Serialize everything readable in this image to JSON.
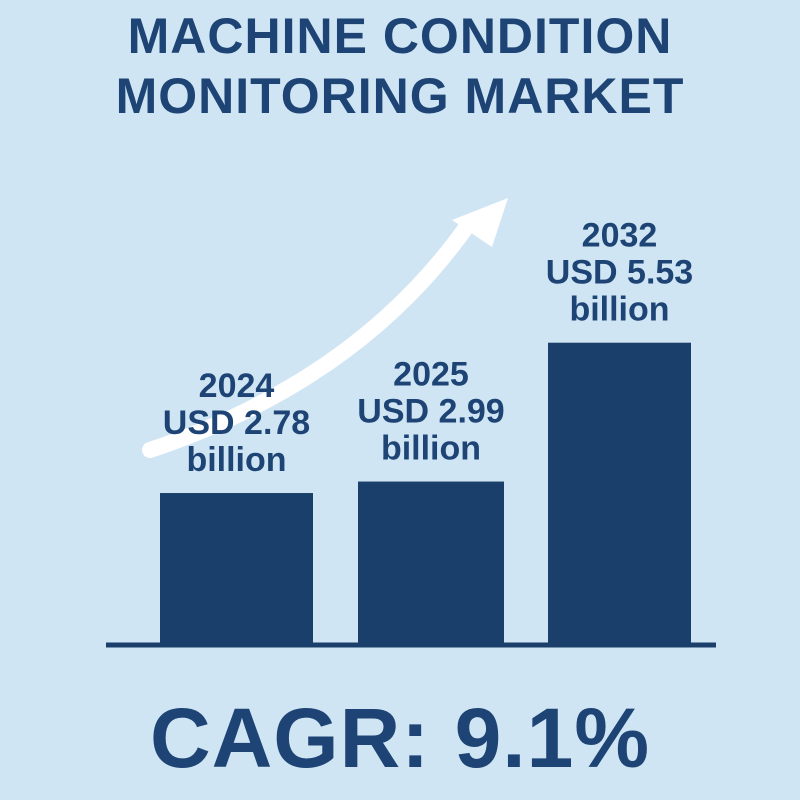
{
  "title_lines": [
    "MACHINE CONDITION",
    "MONITORING MARKET"
  ],
  "cagr_text": "CAGR: 9.1%",
  "colors": {
    "background": "#cfe5f3",
    "bar": "#1b3f6b",
    "text": "#1d4474",
    "arrow": "#ffffff"
  },
  "chart_data": {
    "type": "bar",
    "title": "MACHINE CONDITION MONITORING MARKET",
    "categories": [
      "2024",
      "2025",
      "2032"
    ],
    "values": [
      2.78,
      2.99,
      5.53
    ],
    "value_labels": [
      "USD 2.78",
      "USD 2.99",
      "USD 5.53"
    ],
    "unit_label": "billion",
    "ylim": [
      0,
      6.5
    ],
    "grid": false,
    "annotation": "upward-trend-arrow"
  }
}
